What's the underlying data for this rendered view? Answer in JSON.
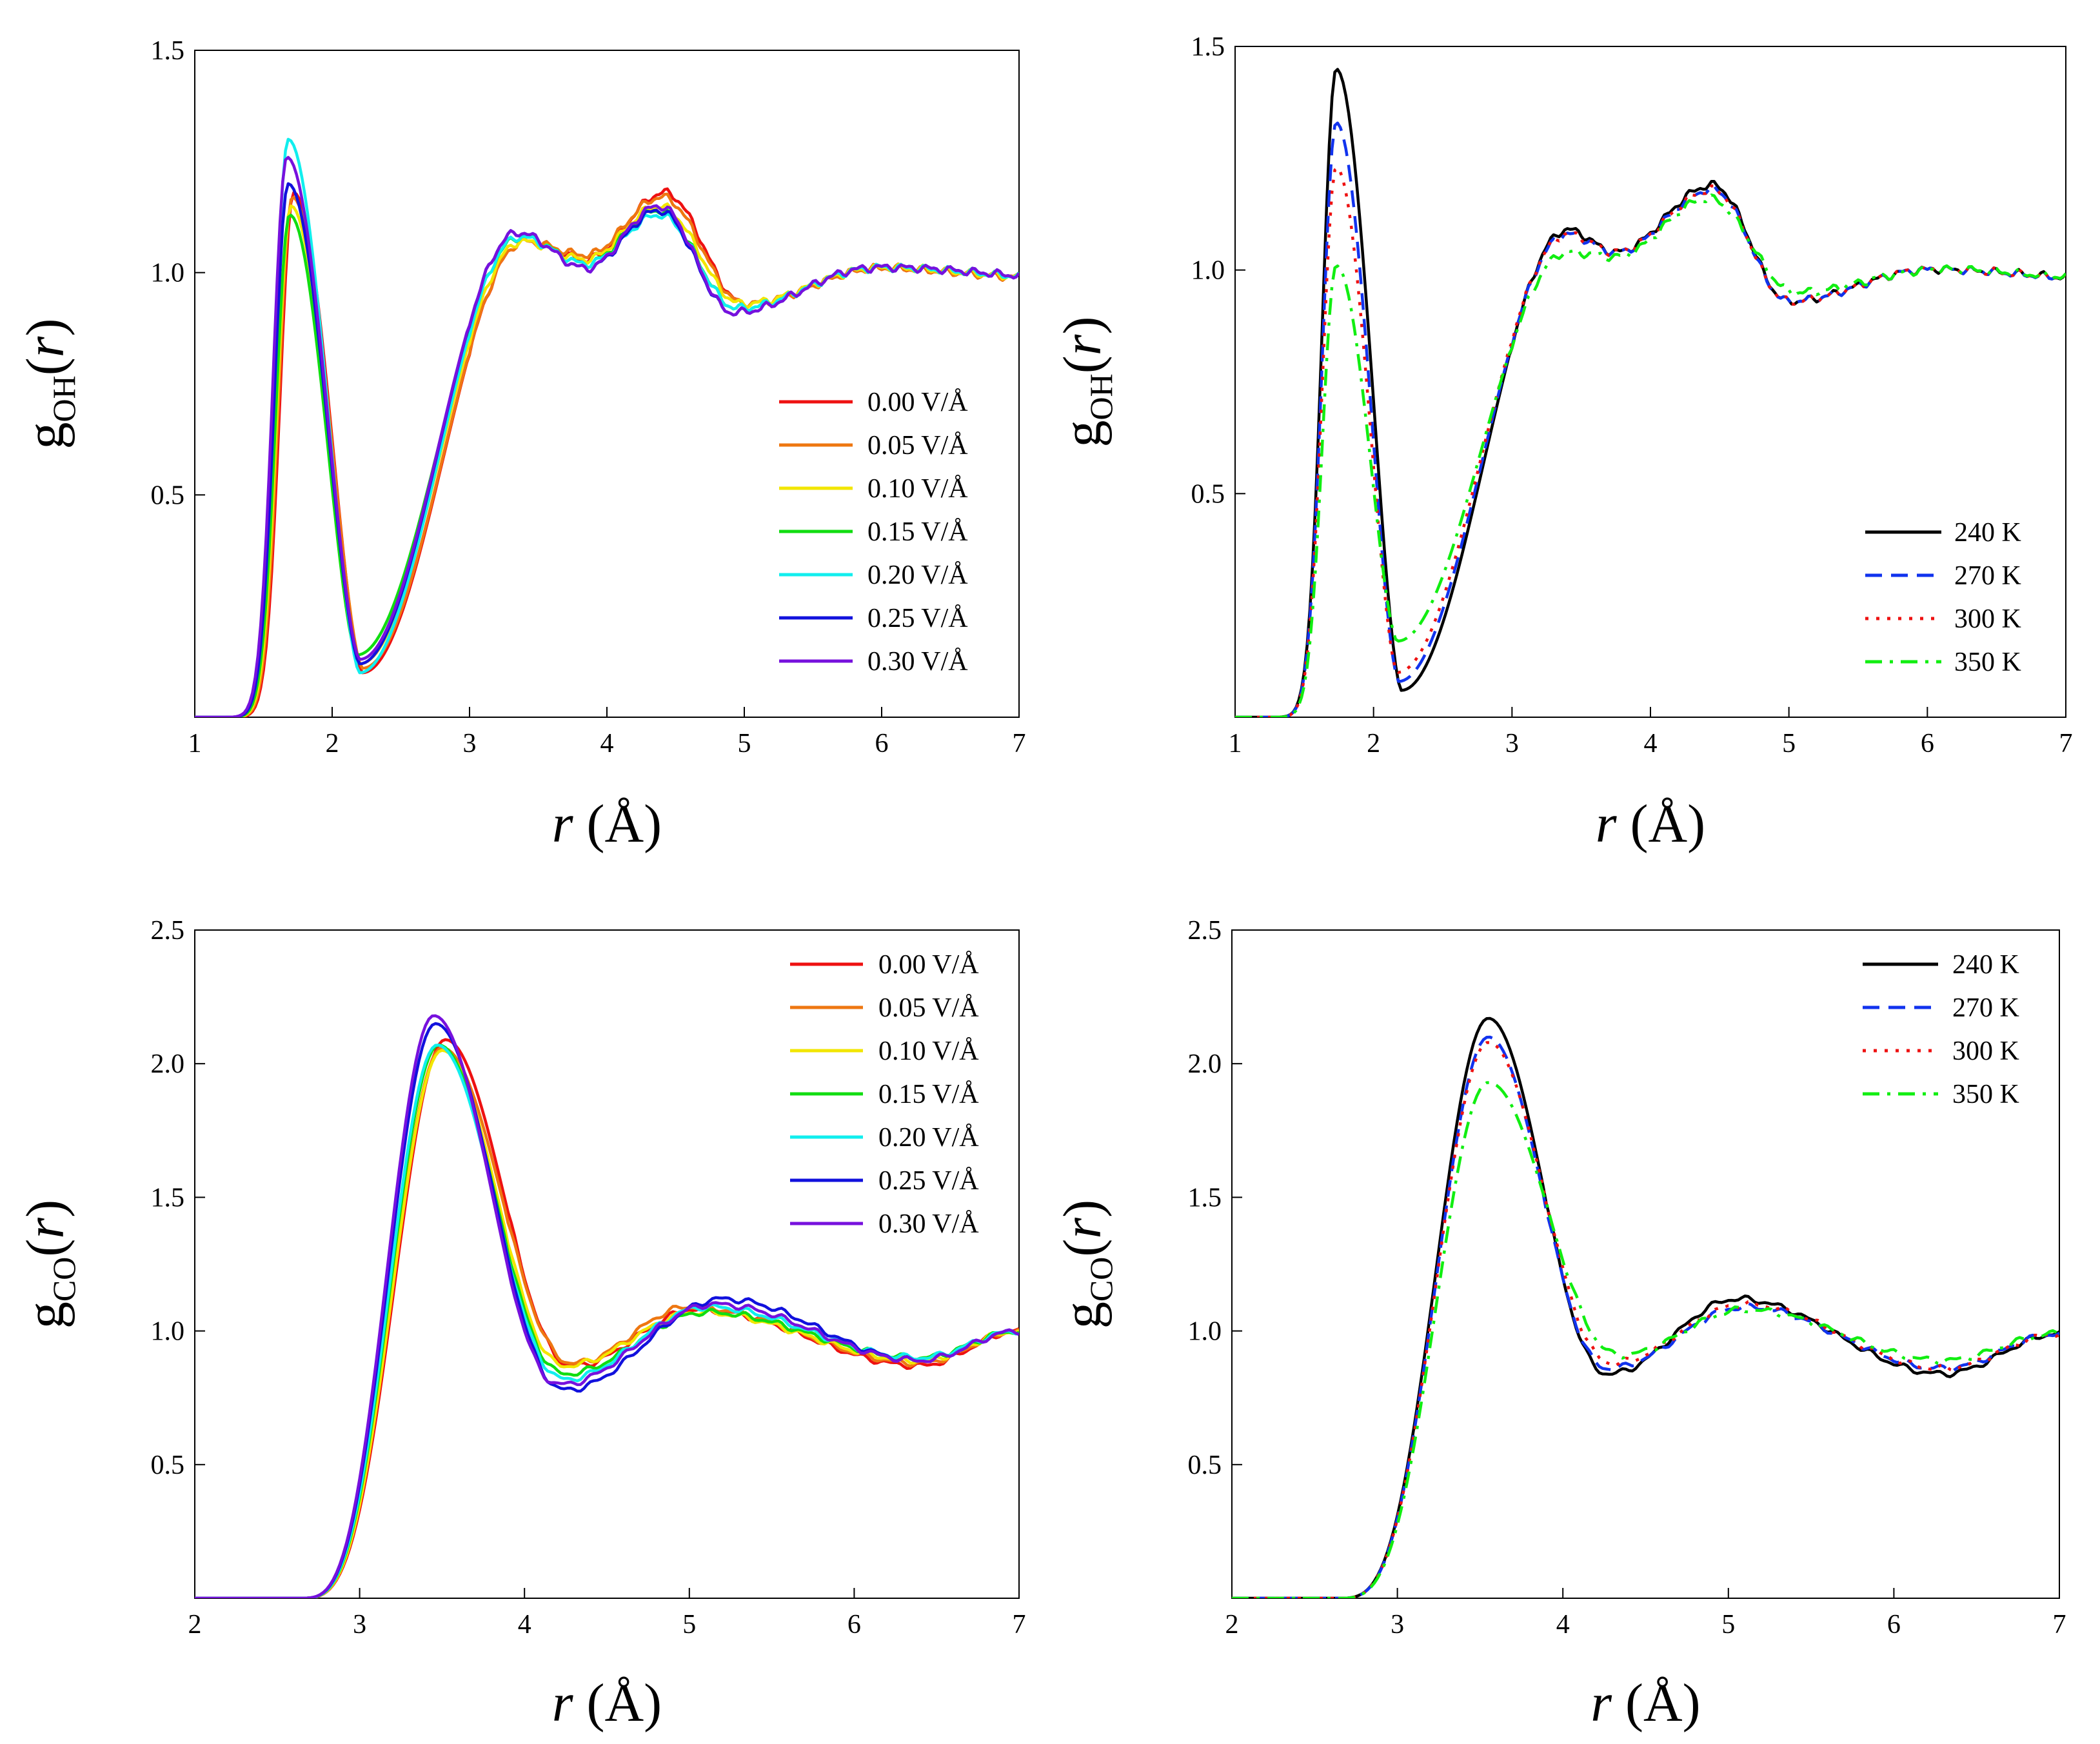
{
  "colors": {
    "0.00": "#ee1111",
    "0.05": "#ee7711",
    "0.10": "#f2e600",
    "0.15": "#11dd11",
    "0.20": "#11eeee",
    "0.25": "#1111dd",
    "0.30": "#7711dd",
    "240": "#000000",
    "270": "#1133ee",
    "300": "#ee1111",
    "350": "#11ee11"
  },
  "chart_data": [
    {
      "id": "tl",
      "type": "line",
      "ylabel": {
        "main": "g",
        "sub": "OH",
        "arg": "r"
      },
      "xlabel": {
        "main": "r",
        "unit": " (Å)"
      },
      "xlim": [
        1,
        7
      ],
      "ylim": [
        0,
        1.5
      ],
      "xticks": [
        "1",
        "2",
        "3",
        "4",
        "5",
        "6",
        "7"
      ],
      "yticks": [
        "0.5",
        "1.0",
        "1.5"
      ],
      "legend_position": "center-right",
      "series": [
        {
          "name": "0.00 V/Å",
          "key": "0.00",
          "style": "solid",
          "peak": [
            1.72,
            1.18
          ],
          "min": [
            2.22,
            0.1
          ],
          "s2": [
            3.4,
            1.07
          ],
          "m2": [
            3.85,
            1.03
          ],
          "p3": [
            4.42,
            1.18
          ],
          "m3": [
            5.0,
            0.93
          ],
          "tail": 1.0,
          "shift": 0.02
        },
        {
          "name": "0.05 V/Å",
          "key": "0.05",
          "style": "solid",
          "peak": [
            1.71,
            1.17
          ],
          "min": [
            2.22,
            0.11
          ],
          "s2": [
            3.4,
            1.07
          ],
          "m2": [
            3.85,
            1.04
          ],
          "p3": [
            4.4,
            1.17
          ],
          "m3": [
            5.0,
            0.93
          ],
          "tail": 1.0,
          "shift": 0.02
        },
        {
          "name": "0.10 V/Å",
          "key": "0.10",
          "style": "solid",
          "peak": [
            1.7,
            1.15
          ],
          "min": [
            2.2,
            0.12
          ],
          "s2": [
            3.38,
            1.07
          ],
          "m2": [
            3.85,
            1.03
          ],
          "p3": [
            4.38,
            1.15
          ],
          "m3": [
            4.98,
            0.93
          ],
          "tail": 1.0,
          "shift": 0.01
        },
        {
          "name": "0.15 V/Å",
          "key": "0.15",
          "style": "solid",
          "peak": [
            1.69,
            1.13
          ],
          "min": [
            2.18,
            0.14
          ],
          "s2": [
            3.37,
            1.08
          ],
          "m2": [
            3.85,
            1.02
          ],
          "p3": [
            4.37,
            1.14
          ],
          "m3": [
            4.95,
            0.92
          ],
          "tail": 1.0,
          "shift": 0.0
        },
        {
          "name": "0.20 V/Å",
          "key": "0.20",
          "style": "solid",
          "peak": [
            1.68,
            1.3
          ],
          "min": [
            2.2,
            0.1
          ],
          "s2": [
            3.36,
            1.08
          ],
          "m2": [
            3.85,
            1.02
          ],
          "p3": [
            4.38,
            1.13
          ],
          "m3": [
            4.95,
            0.92
          ],
          "tail": 1.0,
          "shift": 0.0
        },
        {
          "name": "0.25 V/Å",
          "key": "0.25",
          "style": "solid",
          "peak": [
            1.68,
            1.2
          ],
          "min": [
            2.2,
            0.12
          ],
          "s2": [
            3.35,
            1.09
          ],
          "m2": [
            3.85,
            1.01
          ],
          "p3": [
            4.38,
            1.14
          ],
          "m3": [
            4.92,
            0.91
          ],
          "tail": 1.0,
          "shift": -0.01
        },
        {
          "name": "0.30 V/Å",
          "key": "0.30",
          "style": "solid",
          "peak": [
            1.67,
            1.26
          ],
          "min": [
            2.2,
            0.13
          ],
          "s2": [
            3.35,
            1.09
          ],
          "m2": [
            3.85,
            1.01
          ],
          "p3": [
            4.38,
            1.15
          ],
          "m3": [
            4.92,
            0.91
          ],
          "tail": 1.0,
          "shift": -0.01
        }
      ]
    },
    {
      "id": "tr",
      "type": "line",
      "ylabel": {
        "main": "g",
        "sub": "OH",
        "arg": "r"
      },
      "xlabel": {
        "main": "r",
        "unit": " (Å)"
      },
      "xlim": [
        1,
        7
      ],
      "ylim": [
        0,
        1.5
      ],
      "xticks": [
        "1",
        "2",
        "3",
        "4",
        "5",
        "6",
        "7"
      ],
      "yticks": [
        "0.5",
        "1.0",
        "1.5"
      ],
      "legend_position": "bottom-right",
      "series": [
        {
          "name": "240 K",
          "key": "240",
          "style": "solid",
          "peak": [
            1.73,
            1.45
          ],
          "min": [
            2.2,
            0.06
          ],
          "s2": [
            3.4,
            1.09
          ],
          "m2": [
            3.75,
            1.04
          ],
          "p3": [
            4.45,
            1.19
          ],
          "m3": [
            5.0,
            0.93
          ],
          "tail": 0.99,
          "shift": 0.0
        },
        {
          "name": "270 K",
          "key": "270",
          "style": "dashed",
          "peak": [
            1.73,
            1.33
          ],
          "min": [
            2.18,
            0.08
          ],
          "s2": [
            3.4,
            1.08
          ],
          "m2": [
            3.75,
            1.04
          ],
          "p3": [
            4.45,
            1.18
          ],
          "m3": [
            5.0,
            0.93
          ],
          "tail": 0.99,
          "shift": 0.0
        },
        {
          "name": "300 K",
          "key": "300",
          "style": "dotted",
          "peak": [
            1.73,
            1.23
          ],
          "min": [
            2.17,
            0.1
          ],
          "s2": [
            3.4,
            1.08
          ],
          "m2": [
            3.75,
            1.04
          ],
          "p3": [
            4.45,
            1.18
          ],
          "m3": [
            5.0,
            0.93
          ],
          "tail": 0.99,
          "shift": 0.0
        },
        {
          "name": "350 K",
          "key": "350",
          "style": "dashdot",
          "peak": [
            1.73,
            1.01
          ],
          "min": [
            2.17,
            0.17
          ],
          "s2": [
            3.4,
            1.04
          ],
          "m2": [
            3.75,
            1.03
          ],
          "p3": [
            4.42,
            1.16
          ],
          "m3": [
            5.05,
            0.95
          ],
          "tail": 0.99,
          "shift": 0.0
        }
      ]
    },
    {
      "id": "bl",
      "type": "line",
      "ylabel": {
        "main": "g",
        "sub": "CO",
        "arg": "r"
      },
      "xlabel": {
        "main": "r",
        "unit": " (Å)"
      },
      "xlim": [
        2,
        7
      ],
      "ylim": [
        0,
        2.5
      ],
      "xticks": [
        "2",
        "3",
        "4",
        "5",
        "6",
        "7"
      ],
      "yticks": [
        "0.5",
        "1.0",
        "1.5",
        "2.0",
        "2.5"
      ],
      "legend_position": "top-right",
      "series": [
        {
          "name": "0.00 V/Å",
          "key": "0.00",
          "style": "solid",
          "peak": [
            3.52,
            2.09
          ],
          "min": [
            4.3,
            0.87
          ],
          "p2": [
            5.05,
            1.08
          ],
          "m2": [
            6.4,
            0.87
          ],
          "end": 1.0,
          "shift": 0.05
        },
        {
          "name": "0.05 V/Å",
          "key": "0.05",
          "style": "solid",
          "peak": [
            3.5,
            2.06
          ],
          "min": [
            4.3,
            0.88
          ],
          "p2": [
            5.0,
            1.09
          ],
          "m2": [
            6.4,
            0.88
          ],
          "end": 1.0,
          "shift": 0.04
        },
        {
          "name": "0.10 V/Å",
          "key": "0.10",
          "style": "solid",
          "peak": [
            3.5,
            2.05
          ],
          "min": [
            4.25,
            0.87
          ],
          "p2": [
            5.05,
            1.07
          ],
          "m2": [
            6.4,
            0.89
          ],
          "end": 1.0,
          "shift": 0.03
        },
        {
          "name": "0.15 V/Å",
          "key": "0.15",
          "style": "solid",
          "peak": [
            3.48,
            2.07
          ],
          "min": [
            4.25,
            0.84
          ],
          "p2": [
            5.1,
            1.07
          ],
          "m2": [
            6.4,
            0.9
          ],
          "end": 1.0,
          "shift": 0.02
        },
        {
          "name": "0.20 V/Å",
          "key": "0.20",
          "style": "solid",
          "peak": [
            3.47,
            2.07
          ],
          "min": [
            4.25,
            0.82
          ],
          "p2": [
            5.1,
            1.09
          ],
          "m2": [
            6.4,
            0.9
          ],
          "end": 1.0,
          "shift": 0.01
        },
        {
          "name": "0.25 V/Å",
          "key": "0.25",
          "style": "solid",
          "peak": [
            3.46,
            2.15
          ],
          "min": [
            4.25,
            0.78
          ],
          "p2": [
            5.2,
            1.12
          ],
          "m2": [
            6.4,
            0.89
          ],
          "end": 1.0,
          "shift": 0.0
        },
        {
          "name": "0.30 V/Å",
          "key": "0.30",
          "style": "solid",
          "peak": [
            3.45,
            2.18
          ],
          "min": [
            4.22,
            0.8
          ],
          "p2": [
            5.15,
            1.1
          ],
          "m2": [
            6.4,
            0.89
          ],
          "end": 1.0,
          "shift": 0.0
        }
      ]
    },
    {
      "id": "br",
      "type": "line",
      "ylabel": {
        "main": "g",
        "sub": "CO",
        "arg": "r"
      },
      "xlabel": {
        "main": "r",
        "unit": " (Å)"
      },
      "xlim": [
        2,
        7
      ],
      "ylim": [
        0,
        2.5
      ],
      "xticks": [
        "2",
        "3",
        "4",
        "5",
        "6",
        "7"
      ],
      "yticks": [
        "0.5",
        "1.0",
        "1.5",
        "2.0",
        "2.5"
      ],
      "legend_position": "top-right",
      "series": [
        {
          "name": "240 K",
          "key": "240",
          "style": "solid",
          "peak": [
            3.55,
            2.17
          ],
          "min": [
            4.28,
            0.84
          ],
          "p2": [
            5.05,
            1.12
          ],
          "m2": [
            6.3,
            0.84
          ],
          "end": 0.99,
          "shift": 0.04
        },
        {
          "name": "270 K",
          "key": "270",
          "style": "dashed",
          "peak": [
            3.55,
            2.1
          ],
          "min": [
            4.28,
            0.86
          ],
          "p2": [
            5.1,
            1.09
          ],
          "m2": [
            6.3,
            0.86
          ],
          "end": 0.99,
          "shift": 0.03
        },
        {
          "name": "300 K",
          "key": "300",
          "style": "dotted",
          "peak": [
            3.55,
            2.08
          ],
          "min": [
            4.3,
            0.88
          ],
          "p2": [
            5.1,
            1.1
          ],
          "m2": [
            6.3,
            0.86
          ],
          "end": 0.99,
          "shift": 0.02
        },
        {
          "name": "350 K",
          "key": "350",
          "style": "dashdot",
          "peak": [
            3.55,
            1.93
          ],
          "min": [
            4.35,
            0.91
          ],
          "p2": [
            5.1,
            1.08
          ],
          "m2": [
            6.3,
            0.89
          ],
          "end": 0.99,
          "shift": -0.02
        }
      ]
    }
  ]
}
